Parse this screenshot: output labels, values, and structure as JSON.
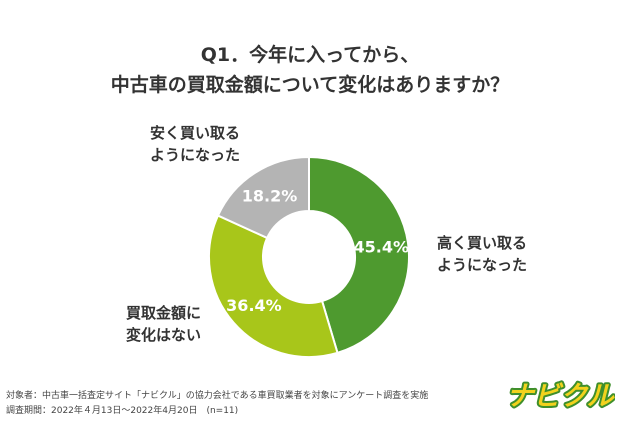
{
  "title": {
    "line1": "Q1．今年に入ってから、",
    "line2": "中古車の買取金額について変化はありますか？"
  },
  "chart_data": {
    "type": "pie",
    "title": "Q1．今年に入ってから、中古車の買取金額について変化はありますか？",
    "slices": [
      {
        "label": "高く買い取るようになった",
        "value": 45.4,
        "value_label": "45.4%",
        "color": "#4e9a2f"
      },
      {
        "label": "買取金額に変化はない",
        "value": 36.4,
        "value_label": "36.4%",
        "color": "#a8c61a"
      },
      {
        "label": "安く買い取るようになった",
        "value": 18.2,
        "value_label": "18.2%",
        "color": "#b4b4b4"
      }
    ],
    "donut": true
  },
  "labels": {
    "higher_line1": "高く買い取る",
    "higher_line2": "ようになった",
    "same_line1": "買取金額に",
    "same_line2": "変化はない",
    "lower_line1": "安く買い取る",
    "lower_line2": "ようになった"
  },
  "footer": {
    "line1": "対象者：中古車一括査定サイト「ナビクル」の協力会社である車買取業者を対象にアンケート調査を実施",
    "line2": "調査期間：2022年４月13日〜2022年4月20日　(n=11)"
  },
  "logo": {
    "text": "ナビクル",
    "fill": "#f2d21d",
    "stroke": "#3f8f2c"
  }
}
